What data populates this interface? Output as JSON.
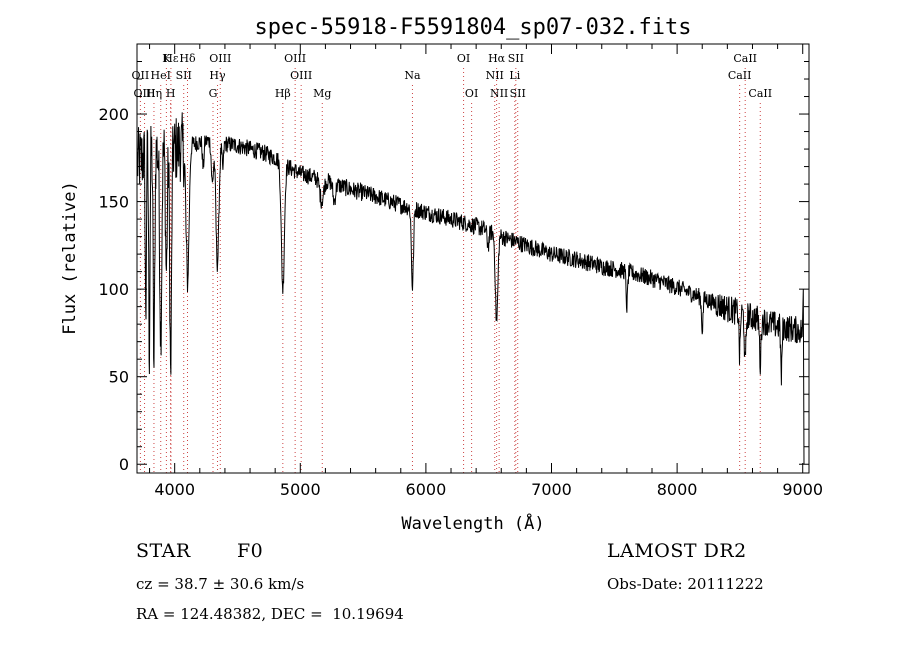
{
  "chart_data": {
    "type": "line",
    "title": "spec-55918-F5591804_sp07-032.fits",
    "xlabel": "Wavelength (Å)",
    "ylabel": "Flux (relative)",
    "xlim": [
      3700,
      9050
    ],
    "ylim": [
      -5,
      240
    ],
    "x_ticks": [
      4000,
      5000,
      6000,
      7000,
      8000,
      9000
    ],
    "y_ticks": [
      0,
      50,
      100,
      150,
      200
    ],
    "grid": false,
    "line_color": "#000000",
    "line_markers": [
      {
        "label": "Hε",
        "wavelength": 3970,
        "row": 0
      },
      {
        "label": "K",
        "wavelength": 3934,
        "row": 0
      },
      {
        "label": "Hδ",
        "wavelength": 4102,
        "row": 0
      },
      {
        "label": "OII",
        "wavelength": 3727,
        "row": 1
      },
      {
        "label": "HeI",
        "wavelength": 3889,
        "row": 1
      },
      {
        "label": "SII",
        "wavelength": 4072,
        "row": 1
      },
      {
        "label": "OIII",
        "wavelength": 3760,
        "row": 2
      },
      {
        "label": "Hη",
        "wavelength": 3835,
        "row": 2
      },
      {
        "label": "H",
        "wavelength": 3968,
        "row": 2
      },
      {
        "label": "OIII",
        "wavelength": 4363,
        "row": 0
      },
      {
        "label": "Hγ",
        "wavelength": 4341,
        "row": 1
      },
      {
        "label": "G",
        "wavelength": 4305,
        "row": 2
      },
      {
        "label": "Hβ",
        "wavelength": 4861,
        "row": 2
      },
      {
        "label": "OIII",
        "wavelength": 4959,
        "row": 0
      },
      {
        "label": "OIII",
        "wavelength": 5007,
        "row": 1
      },
      {
        "label": "Mg",
        "wavelength": 5175,
        "row": 2
      },
      {
        "label": "Na",
        "wavelength": 5893,
        "row": 1
      },
      {
        "label": "OI",
        "wavelength": 6300,
        "row": 0
      },
      {
        "label": "OI",
        "wavelength": 6364,
        "row": 2
      },
      {
        "label": "Hα",
        "wavelength": 6563,
        "row": 0
      },
      {
        "label": "SII",
        "wavelength": 6716,
        "row": 0
      },
      {
        "label": "NII",
        "wavelength": 6548,
        "row": 1
      },
      {
        "label": "Li",
        "wavelength": 6708,
        "row": 1
      },
      {
        "label": "NII",
        "wavelength": 6583,
        "row": 2
      },
      {
        "label": "SII",
        "wavelength": 6731,
        "row": 2
      },
      {
        "label": "CaII",
        "wavelength": 8542,
        "row": 0
      },
      {
        "label": "CaII",
        "wavelength": 8498,
        "row": 1
      },
      {
        "label": "CaII",
        "wavelength": 8662,
        "row": 2
      }
    ],
    "continuum": [
      [
        3700,
        172
      ],
      [
        3800,
        178
      ],
      [
        3900,
        180
      ],
      [
        4000,
        180
      ],
      [
        4100,
        182
      ],
      [
        4200,
        184
      ],
      [
        4300,
        185
      ],
      [
        4400,
        183
      ],
      [
        4500,
        182
      ],
      [
        4600,
        180
      ],
      [
        4700,
        178
      ],
      [
        4800,
        175
      ],
      [
        4900,
        170
      ],
      [
        5000,
        166
      ],
      [
        5200,
        162
      ],
      [
        5400,
        157
      ],
      [
        5600,
        153
      ],
      [
        5800,
        148
      ],
      [
        6000,
        144
      ],
      [
        6200,
        140
      ],
      [
        6400,
        136
      ],
      [
        6600,
        130
      ],
      [
        6800,
        125
      ],
      [
        7000,
        120
      ],
      [
        7200,
        117
      ],
      [
        7400,
        113
      ],
      [
        7600,
        110
      ],
      [
        7800,
        106
      ],
      [
        8000,
        101
      ],
      [
        8200,
        95
      ],
      [
        8400,
        89
      ],
      [
        8600,
        84
      ],
      [
        8800,
        79
      ],
      [
        9000,
        76
      ]
    ],
    "absorption_lines": [
      [
        3770,
        100,
        4
      ],
      [
        3798,
        115,
        5
      ],
      [
        3835,
        125,
        6
      ],
      [
        3889,
        105,
        8
      ],
      [
        3934,
        70,
        7
      ],
      [
        3968,
        130,
        7
      ],
      [
        4102,
        80,
        12
      ],
      [
        4227,
        15,
        6
      ],
      [
        4300,
        25,
        8
      ],
      [
        4340,
        70,
        12
      ],
      [
        4383,
        15,
        6
      ],
      [
        4861,
        72,
        12
      ],
      [
        5170,
        12,
        15
      ],
      [
        5270,
        10,
        10
      ],
      [
        5893,
        45,
        8
      ],
      [
        6495,
        8,
        8
      ],
      [
        6563,
        50,
        10
      ],
      [
        7600,
        20,
        6
      ],
      [
        8200,
        18,
        6
      ],
      [
        8498,
        25,
        5
      ],
      [
        8542,
        30,
        6
      ],
      [
        8662,
        25,
        6
      ],
      [
        8830,
        30,
        5
      ]
    ],
    "noise_amplitude": 5,
    "sample_step": 3
  },
  "info": {
    "object_type": "STAR",
    "subclass": "F0",
    "survey": "LAMOST DR2",
    "redshift": "cz = 38.7 ± 30.6 km/s",
    "obs_date": "Obs-Date: 20111222",
    "coords": "RA = 124.48382, DEC =  10.19694"
  }
}
